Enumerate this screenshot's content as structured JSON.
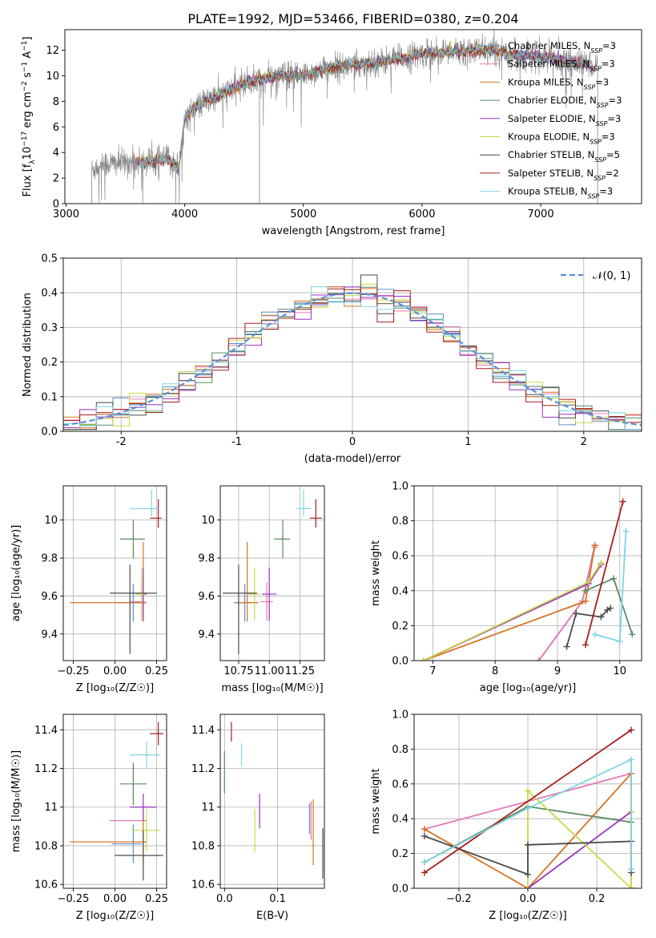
{
  "figure_title": "PLATE=1992, MJD=53466, FIBERID=0380, z=0.204",
  "colors": {
    "Chabrier MILES": "#5b8fc8",
    "Salpeter MILES": "#e57ab6",
    "Kroupa MILES": "#d97320",
    "Chabrier ELODIE": "#5a8a62",
    "Salpeter ELODIE": "#9b2fbf",
    "Kroupa ELODIE": "#c9d94a",
    "Chabrier STELIB": "#4a4a4a",
    "Salpeter STELIB": "#a81d1d",
    "Kroupa STELIB": "#7fd4e0",
    "data": "#808080",
    "normal": "#5b8fd6",
    "grid": "#b0b0b0"
  },
  "chart_data": [
    {
      "id": "spectrum",
      "type": "line",
      "xlabel": "wavelength [Angstrom, rest frame]",
      "ylabel_parts": [
        "Flux [f",
        "λ",
        "10",
        "−17",
        " erg cm",
        "−2",
        " s",
        "−1",
        " A",
        "−1",
        "]"
      ],
      "xlim": [
        2990,
        7850
      ],
      "ylim": [
        0,
        13.6
      ],
      "xticks": [
        3000,
        4000,
        5000,
        6000,
        7000
      ],
      "yticks": [
        0,
        2,
        4,
        6,
        8,
        10,
        12
      ],
      "grid": false,
      "legend_position": "top-right",
      "data_wavelength_range": [
        3215,
        7480
      ],
      "continuum_knots": {
        "x": [
          3215,
          3300,
          3500,
          3700,
          3850,
          3950,
          4000,
          4100,
          4300,
          4500,
          4800,
          5000,
          5200,
          5500,
          5800,
          6000,
          6300,
          6600,
          6800,
          7000,
          7300,
          7480
        ],
        "y": [
          2.6,
          3.1,
          3.2,
          3.3,
          3.5,
          2.8,
          6.6,
          7.6,
          8.5,
          9.4,
          10.0,
          10.0,
          10.6,
          10.9,
          11.3,
          11.7,
          11.9,
          12.0,
          11.6,
          11.5,
          11.0,
          10.8
        ]
      },
      "series": [
        {
          "name": "Chabrier MILES",
          "nssp": "3"
        },
        {
          "name": "Salpeter MILES",
          "nssp": "3"
        },
        {
          "name": "Kroupa MILES",
          "nssp": "3"
        },
        {
          "name": "Chabrier ELODIE",
          "nssp": "3"
        },
        {
          "name": "Salpeter ELODIE",
          "nssp": "3"
        },
        {
          "name": "Kroupa ELODIE",
          "nssp": "3"
        },
        {
          "name": "Chabrier STELIB",
          "nssp": "5"
        },
        {
          "name": "Salpeter STELIB",
          "nssp": "2"
        },
        {
          "name": "Kroupa STELIB",
          "nssp": "3"
        }
      ]
    },
    {
      "id": "residuals",
      "type": "histogram",
      "xlabel": "(data-model)/error",
      "ylabel": "Normed distribution",
      "xlim": [
        -2.5,
        2.5
      ],
      "ylim": [
        0,
        0.5
      ],
      "xticks": [
        -2,
        -1,
        0,
        1,
        2
      ],
      "yticks": [
        0.0,
        0.1,
        0.2,
        0.3,
        0.4,
        0.5
      ],
      "grid": true,
      "legend_position": "top-right",
      "legend_label": "𝒩(0, 1)",
      "bin_edges_range": [
        -2.5,
        2.5
      ],
      "bin_count": 35,
      "normal_curve": {
        "mean": 0,
        "sigma": 1
      }
    },
    {
      "id": "age_vs_Z",
      "type": "errorbar",
      "xlabel": "Z [log₁₀(Z/Z☉)]",
      "ylabel": "age  [log₁₀(age/yr)]",
      "xlim": [
        -0.31,
        0.31
      ],
      "ylim": [
        9.26,
        10.18
      ],
      "xticks": [
        -0.25,
        0.0,
        0.25
      ],
      "xtick_labels": [
        "−0.25",
        "0.00",
        "0.25"
      ],
      "yticks": [
        9.4,
        9.6,
        9.8,
        10.0
      ],
      "grid": true,
      "points": [
        {
          "series": "Chabrier MILES",
          "x": 0.11,
          "y": 9.565,
          "xerr": [
            0.1,
            0.05
          ],
          "yerr": [
            0.1,
            0.1
          ]
        },
        {
          "series": "Salpeter MILES",
          "x": 0.16,
          "y": 9.57,
          "xerr": [
            0.07,
            0.02
          ],
          "yerr": [
            0.1,
            0.1
          ]
        },
        {
          "series": "Kroupa MILES",
          "x": 0.17,
          "y": 9.565,
          "xerr": [
            0.44,
            0.02
          ],
          "yerr": [
            0.1,
            0.32
          ]
        },
        {
          "series": "Chabrier ELODIE",
          "x": 0.11,
          "y": 9.9,
          "xerr": [
            0.08,
            0.07
          ],
          "yerr": [
            0.1,
            0.1
          ]
        },
        {
          "series": "Salpeter ELODIE",
          "x": 0.17,
          "y": 9.61,
          "xerr": [
            0.04,
            0.02
          ],
          "yerr": [
            0.14,
            0.14
          ]
        },
        {
          "series": "Kroupa ELODIE",
          "x": 0.16,
          "y": 9.61,
          "xerr": [
            0.04,
            0.02
          ],
          "yerr": [
            0.14,
            0.14
          ]
        },
        {
          "series": "Chabrier STELIB",
          "x": 0.09,
          "y": 9.615,
          "xerr": [
            0.12,
            0.16
          ],
          "yerr": [
            0.32,
            0.15
          ]
        },
        {
          "series": "Salpeter STELIB",
          "x": 0.26,
          "y": 10.01,
          "xerr": [
            0.05,
            0.02
          ],
          "yerr": [
            0.05,
            0.1
          ]
        },
        {
          "series": "Kroupa STELIB",
          "x": 0.22,
          "y": 10.06,
          "xerr": [
            0.13,
            0.04
          ],
          "yerr": [
            0.04,
            0.1
          ]
        }
      ]
    },
    {
      "id": "age_vs_mass",
      "type": "errorbar",
      "xlabel": "mass [log₁₀(M/M☉)]",
      "xlim": [
        10.6,
        11.45
      ],
      "ylim": [
        9.26,
        10.18
      ],
      "xticks": [
        10.75,
        11.0,
        11.25
      ],
      "xtick_labels": [
        "10.75",
        "11.00",
        "11.25"
      ],
      "yticks": [
        9.4,
        9.6,
        9.8,
        10.0
      ],
      "grid": true,
      "points": [
        {
          "series": "Chabrier MILES",
          "x": 10.8,
          "y": 9.565,
          "xerr": [
            0.09,
            0.1
          ],
          "yerr": [
            0.1,
            0.1
          ]
        },
        {
          "series": "Salpeter MILES",
          "x": 10.98,
          "y": 9.57,
          "xerr": [
            0.05,
            0.05
          ],
          "yerr": [
            0.1,
            0.1
          ]
        },
        {
          "series": "Kroupa MILES",
          "x": 10.82,
          "y": 9.565,
          "xerr": [
            0.09,
            0.09
          ],
          "yerr": [
            0.1,
            0.32
          ]
        },
        {
          "series": "Chabrier ELODIE",
          "x": 11.11,
          "y": 9.9,
          "xerr": [
            0.07,
            0.06
          ],
          "yerr": [
            0.1,
            0.1
          ]
        },
        {
          "series": "Salpeter ELODIE",
          "x": 11.0,
          "y": 9.61,
          "xerr": [
            0.06,
            0.06
          ],
          "yerr": [
            0.14,
            0.14
          ]
        },
        {
          "series": "Kroupa ELODIE",
          "x": 10.88,
          "y": 9.61,
          "xerr": [
            0.06,
            0.05
          ],
          "yerr": [
            0.14,
            0.14
          ]
        },
        {
          "series": "Chabrier STELIB",
          "x": 10.75,
          "y": 9.615,
          "xerr": [
            0.13,
            0.15
          ],
          "yerr": [
            0.32,
            0.15
          ]
        },
        {
          "series": "Salpeter STELIB",
          "x": 11.38,
          "y": 10.01,
          "xerr": [
            0.05,
            0.05
          ],
          "yerr": [
            0.05,
            0.1
          ]
        },
        {
          "series": "Kroupa STELIB",
          "x": 11.28,
          "y": 10.06,
          "xerr": [
            0.06,
            0.06
          ],
          "yerr": [
            0.04,
            0.1
          ]
        }
      ]
    },
    {
      "id": "mass_weight_vs_age",
      "type": "line",
      "xlabel": "age  [log₁₀(age/yr)]",
      "ylabel": "mass weight",
      "xlim": [
        6.7,
        10.35
      ],
      "ylim": [
        0,
        1
      ],
      "xticks": [
        7,
        8,
        9,
        10
      ],
      "yticks": [
        0.0,
        0.2,
        0.4,
        0.6,
        0.8,
        1.0
      ],
      "grid": true,
      "series": [
        {
          "name": "Chabrier MILES",
          "x": [
            8.7,
            9.4,
            9.6
          ],
          "y": [
            0.0,
            0.34,
            0.66
          ]
        },
        {
          "name": "Salpeter MILES",
          "x": [
            8.7,
            9.4,
            9.6
          ],
          "y": [
            0.0,
            0.34,
            0.65
          ]
        },
        {
          "name": "Kroupa MILES",
          "x": [
            6.85,
            9.45,
            9.6
          ],
          "y": [
            0.0,
            0.34,
            0.66
          ]
        },
        {
          "name": "Chabrier ELODIE",
          "x": [
            9.45,
            9.9,
            10.2
          ],
          "y": [
            0.4,
            0.47,
            0.15
          ]
        },
        {
          "name": "Salpeter ELODIE",
          "x": [
            6.85,
            9.5,
            9.7
          ],
          "y": [
            0.0,
            0.44,
            0.55
          ]
        },
        {
          "name": "Kroupa ELODIE",
          "x": [
            6.85,
            9.5,
            9.7
          ],
          "y": [
            0.0,
            0.45,
            0.56
          ]
        },
        {
          "name": "Chabrier STELIB",
          "x": [
            9.15,
            9.3,
            9.7,
            9.8,
            9.85
          ],
          "y": [
            0.08,
            0.27,
            0.25,
            0.29,
            0.3
          ]
        },
        {
          "name": "Salpeter STELIB",
          "x": [
            9.45,
            10.05
          ],
          "y": [
            0.09,
            0.91
          ]
        },
        {
          "name": "Kroupa STELIB",
          "x": [
            9.6,
            10.0,
            10.1
          ],
          "y": [
            0.15,
            0.11,
            0.74
          ]
        }
      ]
    },
    {
      "id": "mass_vs_Z",
      "type": "errorbar",
      "xlabel": "Z [log₁₀(Z/Z☉)]",
      "ylabel": "mass [log₁₀(M/M☉)]",
      "xlim": [
        -0.31,
        0.31
      ],
      "ylim": [
        10.58,
        11.48
      ],
      "xticks": [
        -0.25,
        0.0,
        0.25
      ],
      "xtick_labels": [
        "−0.25",
        "0.00",
        "0.25"
      ],
      "yticks": [
        10.6,
        10.8,
        11.0,
        11.2,
        11.4
      ],
      "grid": true,
      "points": [
        {
          "series": "Chabrier MILES",
          "x": 0.11,
          "y": 10.81,
          "xerr": [
            0.13,
            0.05
          ],
          "yerr": [
            0.1,
            0.1
          ]
        },
        {
          "series": "Salpeter MILES",
          "x": 0.17,
          "y": 10.93,
          "xerr": [
            0.2,
            0.02
          ],
          "yerr": [
            0.08,
            0.08
          ]
        },
        {
          "series": "Kroupa MILES",
          "x": 0.17,
          "y": 10.82,
          "xerr": [
            0.44,
            0.02
          ],
          "yerr": [
            0.12,
            0.12
          ]
        },
        {
          "series": "Chabrier ELODIE",
          "x": 0.11,
          "y": 11.12,
          "xerr": [
            0.08,
            0.08
          ],
          "yerr": [
            0.11,
            0.11
          ]
        },
        {
          "series": "Salpeter ELODIE",
          "x": 0.17,
          "y": 11.0,
          "xerr": [
            0.08,
            0.08
          ],
          "yerr": [
            0.07,
            0.07
          ]
        },
        {
          "series": "Kroupa ELODIE",
          "x": 0.19,
          "y": 10.88,
          "xerr": [
            0.08,
            0.08
          ],
          "yerr": [
            0.11,
            0.11
          ]
        },
        {
          "series": "Chabrier STELIB",
          "x": 0.17,
          "y": 10.75,
          "xerr": [
            0.17,
            0.12
          ],
          "yerr": [
            0.13,
            0.13
          ]
        },
        {
          "series": "Salpeter STELIB",
          "x": 0.26,
          "y": 11.38,
          "xerr": [
            0.05,
            0.03
          ],
          "yerr": [
            0.06,
            0.06
          ]
        },
        {
          "series": "Kroupa STELIB",
          "x": 0.19,
          "y": 11.27,
          "xerr": [
            0.1,
            0.08
          ],
          "yerr": [
            0.07,
            0.07
          ]
        }
      ]
    },
    {
      "id": "mass_vs_ebv",
      "type": "errorbar",
      "xlabel": "E(B-V)",
      "xlim": [
        -0.008,
        0.188
      ],
      "ylim": [
        10.58,
        11.48
      ],
      "xticks": [
        0.0,
        0.1
      ],
      "xtick_labels": [
        "0.0",
        "0.1"
      ],
      "yticks": [
        10.6,
        10.8,
        11.0,
        11.2,
        11.4
      ],
      "grid": true,
      "points": [
        {
          "series": "Chabrier MILES",
          "x": 0.16,
          "y": 10.94,
          "yerr": [
            0.08,
            0.08
          ]
        },
        {
          "series": "Salpeter MILES",
          "x": 0.163,
          "y": 10.93,
          "yerr": [
            0.1,
            0.1
          ]
        },
        {
          "series": "Kroupa MILES",
          "x": 0.167,
          "y": 10.87,
          "yerr": [
            0.17,
            0.17
          ]
        },
        {
          "series": "Chabrier ELODIE",
          "x": 0.0,
          "y": 11.18,
          "yerr": [
            0.11,
            0.11
          ]
        },
        {
          "series": "Salpeter ELODIE",
          "x": 0.066,
          "y": 10.98,
          "yerr": [
            0.09,
            0.09
          ]
        },
        {
          "series": "Kroupa ELODIE",
          "x": 0.057,
          "y": 10.88,
          "yerr": [
            0.11,
            0.11
          ]
        },
        {
          "series": "Chabrier STELIB",
          "x": 0.185,
          "y": 10.76,
          "yerr": [
            0.13,
            0.13
          ]
        },
        {
          "series": "Salpeter STELIB",
          "x": 0.013,
          "y": 11.39,
          "yerr": [
            0.05,
            0.05
          ]
        },
        {
          "series": "Kroupa STELIB",
          "x": 0.032,
          "y": 11.27,
          "yerr": [
            0.06,
            0.06
          ]
        }
      ]
    },
    {
      "id": "mass_weight_vs_Z",
      "type": "line",
      "xlabel": "Z [log₁₀(Z/Z☉)]",
      "ylabel": "mass weight",
      "xlim": [
        -0.33,
        0.33
      ],
      "ylim": [
        0,
        1
      ],
      "xticks": [
        -0.2,
        0.0,
        0.2
      ],
      "xtick_labels": [
        "−0.2",
        "0.0",
        "0.2"
      ],
      "yticks": [
        0.0,
        0.2,
        0.4,
        0.6,
        0.8,
        1.0
      ],
      "grid": true,
      "series": [
        {
          "name": "Chabrier MILES",
          "x": [
            0.3,
            0.3
          ],
          "y": [
            0.0,
            0.66
          ]
        },
        {
          "name": "Salpeter MILES",
          "x": [
            -0.3,
            0.3,
            0.3
          ],
          "y": [
            0.34,
            0.66,
            0.0
          ]
        },
        {
          "name": "Kroupa MILES",
          "x": [
            -0.3,
            0.0,
            0.3,
            0.3
          ],
          "y": [
            0.34,
            0.0,
            0.66,
            0.0
          ]
        },
        {
          "name": "Chabrier ELODIE",
          "x": [
            -0.3,
            0.0,
            0.3
          ],
          "y": [
            0.15,
            0.47,
            0.38
          ]
        },
        {
          "name": "Salpeter ELODIE",
          "x": [
            0.0,
            0.3
          ],
          "y": [
            0.0,
            0.44
          ]
        },
        {
          "name": "Kroupa ELODIE",
          "x": [
            0.0,
            0.0,
            0.3,
            0.3
          ],
          "y": [
            0.0,
            0.56,
            0.0,
            0.44
          ]
        },
        {
          "name": "Chabrier STELIB",
          "x": [
            -0.3,
            0.0,
            0.0,
            0.3,
            0.3
          ],
          "y": [
            0.3,
            0.08,
            0.25,
            0.27,
            0.09
          ]
        },
        {
          "name": "Salpeter STELIB",
          "x": [
            -0.3,
            0.3
          ],
          "y": [
            0.09,
            0.91
          ]
        },
        {
          "name": "Kroupa STELIB",
          "x": [
            -0.3,
            0.0,
            0.3,
            0.3
          ],
          "y": [
            0.15,
            0.46,
            0.74,
            0.11
          ]
        }
      ]
    }
  ]
}
